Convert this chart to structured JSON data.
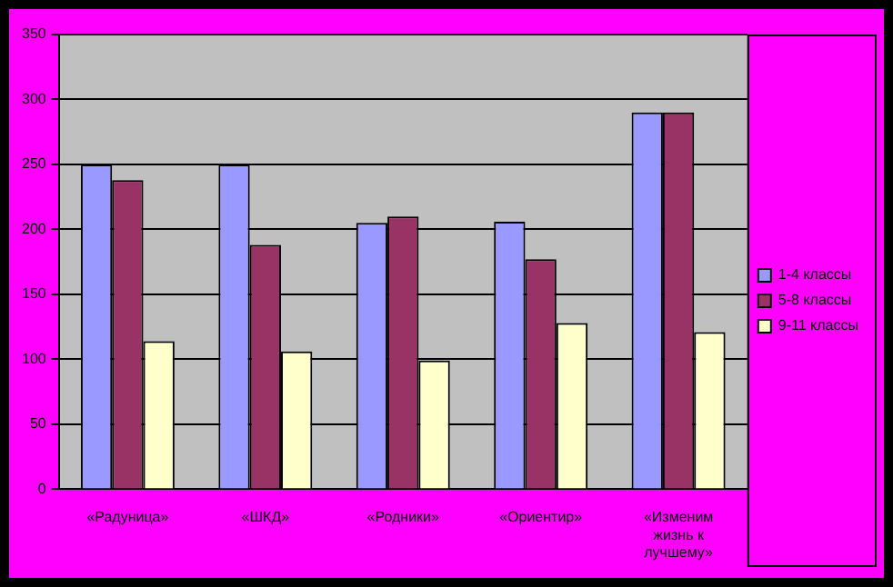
{
  "chart_data": {
    "type": "bar",
    "categories": [
      "«Радуница»",
      "«ШКД»",
      "«Родники»",
      "«Ориентир»",
      "«Изменим жизнь к лучшему»"
    ],
    "series": [
      {
        "name": "1-4 классы",
        "color": "#9999ff",
        "values": [
          250,
          250,
          205,
          206,
          290
        ]
      },
      {
        "name": "5-8 классы",
        "color": "#993366",
        "values": [
          238,
          188,
          210,
          177,
          290
        ]
      },
      {
        "name": "9-11 классы",
        "color": "#ffffcc",
        "values": [
          114,
          106,
          99,
          128,
          121
        ]
      }
    ],
    "ylim": [
      0,
      350
    ],
    "yticks": [
      0,
      50,
      100,
      150,
      200,
      250,
      300,
      350
    ],
    "grid": "y",
    "legend": "right"
  }
}
